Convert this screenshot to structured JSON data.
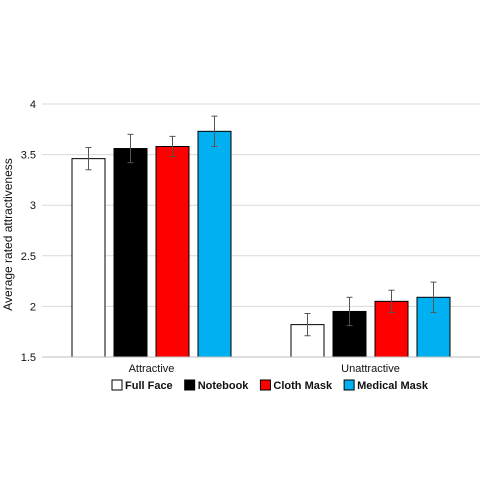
{
  "chart_data": {
    "type": "bar",
    "categories": [
      "Attractive",
      "Unattractive"
    ],
    "series": [
      {
        "name": "Full Face",
        "values": [
          3.46,
          1.82
        ],
        "errors": [
          0.11,
          0.11
        ],
        "color": "#ffffff"
      },
      {
        "name": "Notebook",
        "values": [
          3.56,
          1.95
        ],
        "errors": [
          0.14,
          0.14
        ],
        "color": "#000000"
      },
      {
        "name": "Cloth Mask",
        "values": [
          3.58,
          2.05
        ],
        "errors": [
          0.1,
          0.11
        ],
        "color": "#ff0000"
      },
      {
        "name": "Medical Mask",
        "values": [
          3.73,
          2.09
        ],
        "errors": [
          0.15,
          0.15
        ],
        "color": "#00b0f0"
      }
    ],
    "title": "",
    "xlabel": "",
    "ylabel": "Average rated attractiveness",
    "ylim": [
      1.5,
      4
    ],
    "yticks": [
      "1.5",
      "2",
      "2.5",
      "3",
      "3.5",
      "4"
    ],
    "grid": true,
    "legend_position": "bottom",
    "bar_outline_color": "#000000",
    "grid_color": "#d9d9d9"
  }
}
